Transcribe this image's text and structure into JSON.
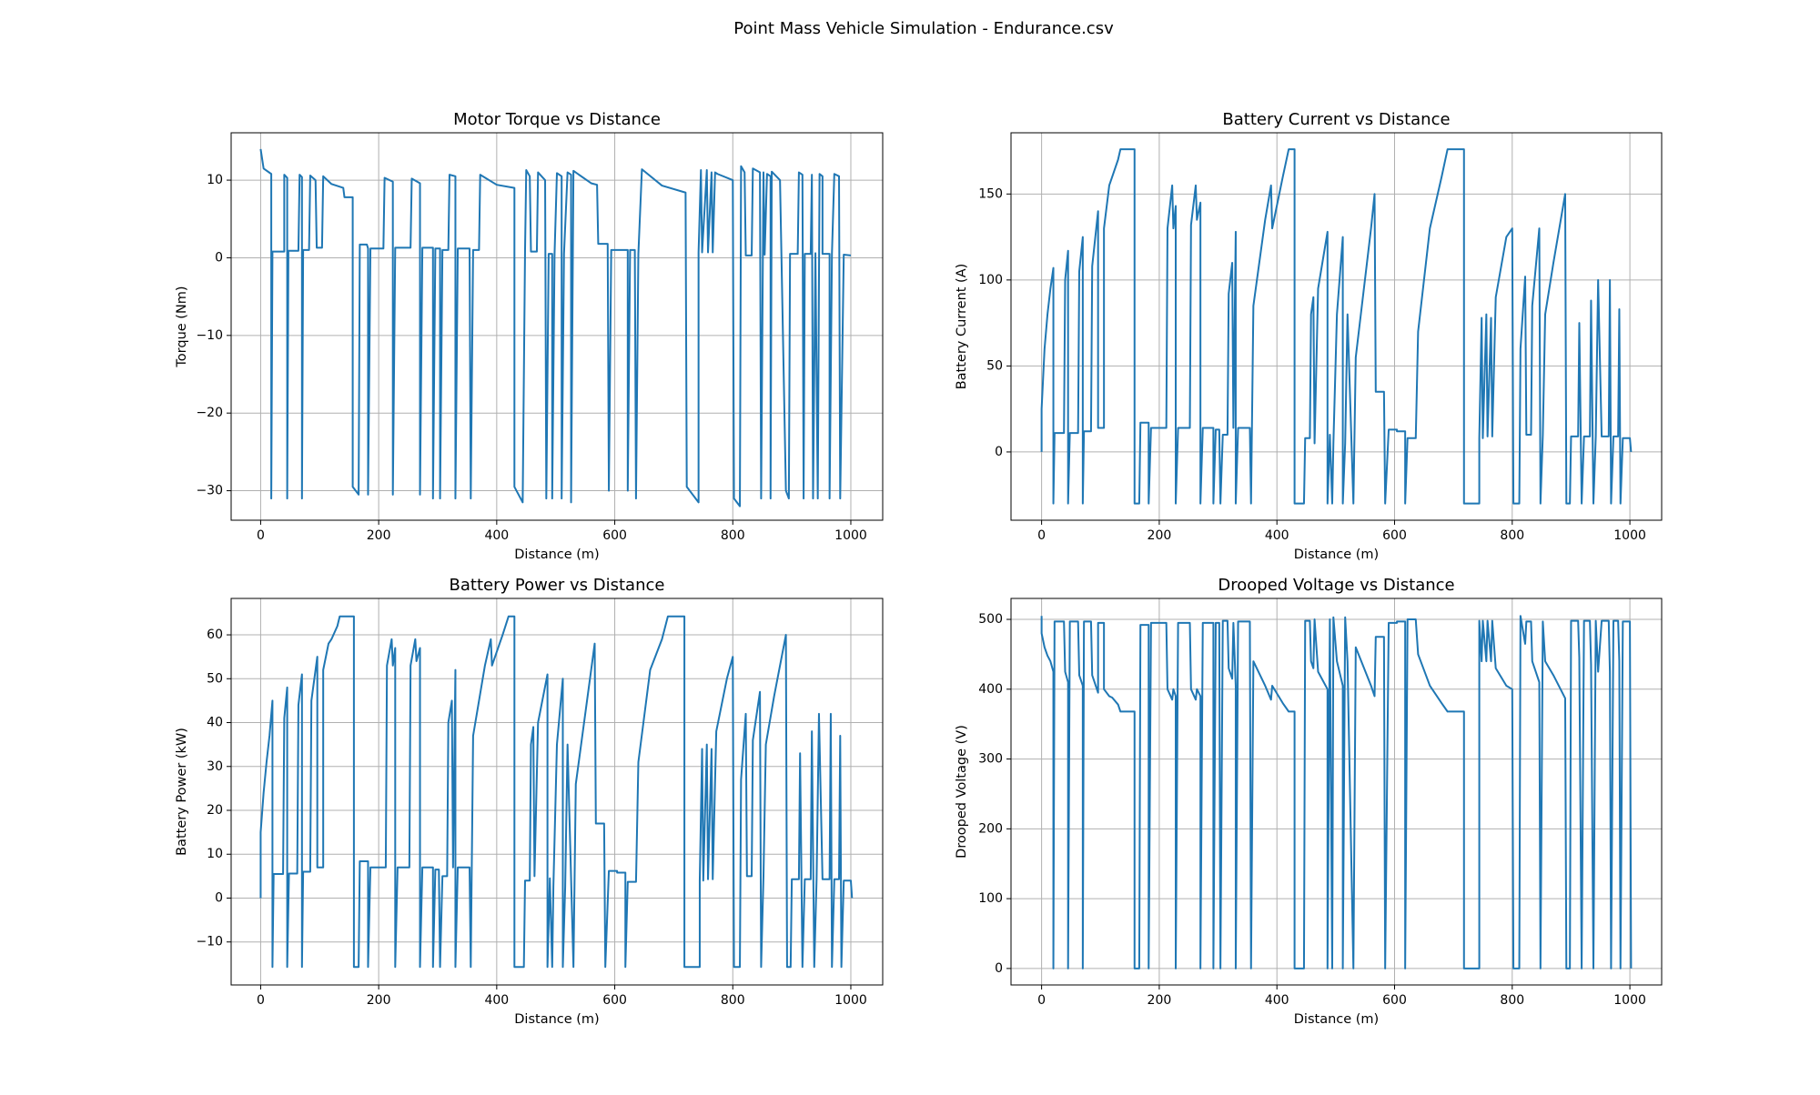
{
  "title": "Point Mass Vehicle Simulation - Endurance.csv",
  "chart_data": [
    {
      "type": "line",
      "title": "Motor Torque vs Distance",
      "xlabel": "Distance (m)",
      "ylabel": "Torque (Nm)",
      "color": "#1f77b4",
      "grid": true,
      "xlim": [
        -50,
        1054
      ],
      "ylim": [
        -33.8,
        16.1
      ],
      "xticks": [
        0,
        200,
        400,
        600,
        800,
        1000
      ],
      "yticks": [
        {
          "value": -30,
          "label": "−30"
        },
        {
          "value": -20,
          "label": "−20"
        },
        {
          "value": -10,
          "label": "−10"
        },
        0,
        10
      ],
      "x": [
        0,
        5,
        18,
        18,
        20,
        40,
        40,
        45,
        45,
        47,
        64,
        66,
        70,
        70,
        72,
        82,
        84,
        93,
        95,
        104,
        106,
        120,
        140,
        142,
        156,
        156,
        166,
        168,
        180,
        182,
        182,
        186,
        208,
        210,
        224,
        224,
        228,
        254,
        256,
        270,
        270,
        274,
        292,
        292,
        296,
        304,
        304,
        308,
        318,
        320,
        330,
        330,
        334,
        354,
        356,
        360,
        370,
        372,
        400,
        430,
        430,
        444,
        448,
        450,
        456,
        458,
        468,
        470,
        482,
        484,
        488,
        494,
        494,
        498,
        502,
        510,
        510,
        514,
        520,
        526,
        526,
        530,
        560,
        570,
        572,
        588,
        590,
        594,
        622,
        622,
        626,
        634,
        636,
        640,
        646,
        680,
        720,
        722,
        742,
        742,
        746,
        748,
        756,
        758,
        764,
        766,
        770,
        774,
        800,
        802,
        812,
        814,
        820,
        822,
        832,
        834,
        846,
        848,
        852,
        854,
        858,
        864,
        864,
        866,
        880,
        890,
        895,
        897,
        910,
        912,
        918,
        920,
        922,
        932,
        934,
        936,
        940,
        944,
        947,
        952,
        952,
        964,
        964,
        968,
        972,
        980,
        982,
        988,
        1000
      ],
      "values": [
        14,
        11.5,
        10.8,
        -31,
        0.8,
        0.8,
        10.7,
        10.3,
        -31,
        0.9,
        0.9,
        10.7,
        10.4,
        -31,
        1,
        1,
        10.6,
        10,
        1.3,
        1.3,
        10.5,
        9.5,
        9,
        7.8,
        7.8,
        -29.5,
        -30.5,
        1.7,
        1.7,
        1.2,
        -30.5,
        1.2,
        1.2,
        10.3,
        9.8,
        -30.5,
        1.3,
        1.3,
        10.2,
        9.6,
        -30.5,
        1.3,
        1.3,
        -31,
        1.2,
        1.2,
        -31,
        1,
        1,
        10.7,
        10.5,
        -31,
        1.2,
        1.2,
        -31,
        1,
        1,
        10.7,
        9.4,
        9,
        -29.5,
        -31.5,
        1,
        11.3,
        10.5,
        0.8,
        0.8,
        11,
        10,
        -31,
        0.5,
        0.5,
        -31,
        0.5,
        10.9,
        10.5,
        -31,
        0.5,
        11,
        10.7,
        -31.5,
        11.2,
        9.6,
        9.4,
        1.8,
        1.8,
        -30,
        1,
        1,
        -30,
        1,
        1,
        -31,
        0.5,
        11.4,
        9.3,
        8.4,
        -29.5,
        -31.5,
        0.7,
        11.3,
        0.7,
        11.3,
        0.7,
        11,
        0.7,
        11,
        10.8,
        10,
        -31,
        -32,
        11.8,
        11,
        0.3,
        0.3,
        11.5,
        11,
        -31,
        11,
        0.4,
        10.8,
        10.5,
        -31,
        11.1,
        10,
        -30,
        -31,
        0.5,
        0.5,
        11,
        10.7,
        -31,
        0.5,
        0.5,
        10.7,
        -31,
        0.6,
        -31,
        10.8,
        10.5,
        0.5,
        0.5,
        -31,
        0.5,
        10.8,
        10.5,
        -31,
        0.4,
        0.3
      ]
    },
    {
      "type": "line",
      "title": "Battery Current vs Distance",
      "xlabel": "Distance (m)",
      "ylabel": "Battery Current (A)",
      "color": "#1f77b4",
      "grid": true,
      "xlim": [
        -52,
        1054
      ],
      "ylim": [
        -39.7,
        185.6
      ],
      "xticks": [
        0,
        200,
        400,
        600,
        800,
        1000
      ],
      "yticks": [
        0,
        50,
        100,
        150
      ],
      "x": [
        0,
        0,
        5,
        10,
        15,
        20,
        20,
        22,
        38,
        40,
        45,
        45,
        48,
        62,
        64,
        70,
        70,
        72,
        84,
        86,
        96,
        96,
        106,
        106,
        115,
        120,
        130,
        134,
        158,
        158,
        166,
        168,
        182,
        182,
        186,
        212,
        214,
        222,
        224,
        228,
        228,
        232,
        252,
        254,
        262,
        264,
        270,
        270,
        274,
        292,
        292,
        296,
        302,
        304,
        308,
        316,
        318,
        324,
        326,
        330,
        330,
        334,
        354,
        356,
        360,
        380,
        390,
        392,
        410,
        420,
        430,
        430,
        446,
        448,
        456,
        458,
        462,
        464,
        470,
        486,
        486,
        490,
        494,
        496,
        502,
        512,
        512,
        516,
        520,
        530,
        534,
        560,
        566,
        568,
        582,
        584,
        590,
        604,
        604,
        618,
        618,
        622,
        636,
        640,
        660,
        680,
        690,
        718,
        718,
        744,
        744,
        748,
        750,
        756,
        758,
        764,
        766,
        772,
        790,
        800,
        802,
        812,
        814,
        822,
        824,
        832,
        834,
        846,
        848,
        852,
        856,
        870,
        890,
        892,
        898,
        900,
        912,
        914,
        918,
        922,
        932,
        934,
        938,
        942,
        946,
        952,
        964,
        966,
        968,
        972,
        980,
        982,
        984,
        988,
        1000,
        1002
      ],
      "values": [
        0,
        25,
        60,
        80,
        95,
        107,
        -30,
        11,
        11,
        100,
        117,
        -30,
        11,
        11,
        105,
        125,
        -30,
        12,
        12,
        108,
        140,
        14,
        14,
        130,
        155,
        160,
        170,
        176,
        176,
        -30,
        -30,
        17,
        17,
        -30,
        14,
        14,
        130,
        155,
        130,
        143,
        -30,
        14,
        14,
        132,
        155,
        135,
        145,
        -30,
        14,
        14,
        -30,
        13,
        13,
        -30,
        10,
        10,
        92,
        110,
        14,
        128,
        -30,
        14,
        14,
        -30,
        85,
        135,
        155,
        130,
        160,
        176,
        176,
        -30,
        -30,
        8,
        8,
        80,
        90,
        5,
        95,
        128,
        -30,
        10,
        -30,
        5,
        80,
        125,
        -30,
        5,
        80,
        -30,
        55,
        130,
        150,
        35,
        35,
        -30,
        13,
        13,
        12,
        12,
        -30,
        8,
        8,
        70,
        130,
        160,
        176,
        176,
        -30,
        -30,
        8,
        78,
        8,
        80,
        9,
        78,
        9,
        90,
        125,
        130,
        -30,
        -30,
        60,
        102,
        10,
        10,
        85,
        130,
        -30,
        10,
        80,
        110,
        150,
        -30,
        -30,
        9,
        9,
        75,
        -30,
        9,
        9,
        88,
        -30,
        9,
        100,
        9,
        9,
        100,
        -30,
        9,
        9,
        83,
        -30,
        8,
        8,
        0
      ]
    },
    {
      "type": "line",
      "title": "Battery Power vs Distance",
      "xlabel": "Distance (m)",
      "ylabel": "Battery Power (kW)",
      "color": "#1f77b4",
      "grid": true,
      "xlim": [
        -50,
        1054
      ],
      "ylim": [
        -19.8,
        68.3
      ],
      "xticks": [
        0,
        200,
        400,
        600,
        800,
        1000
      ],
      "yticks": [
        {
          "value": -10,
          "label": "−10"
        },
        0,
        10,
        20,
        30,
        40,
        50,
        60
      ],
      "x": [
        0,
        0,
        5,
        10,
        15,
        20,
        20,
        22,
        38,
        40,
        45,
        45,
        48,
        62,
        64,
        70,
        70,
        72,
        84,
        86,
        96,
        96,
        106,
        106,
        115,
        120,
        130,
        134,
        158,
        158,
        166,
        168,
        182,
        182,
        186,
        212,
        214,
        222,
        224,
        228,
        228,
        232,
        252,
        254,
        262,
        264,
        270,
        270,
        274,
        292,
        292,
        296,
        302,
        304,
        308,
        316,
        318,
        324,
        326,
        330,
        330,
        334,
        354,
        356,
        360,
        380,
        390,
        392,
        410,
        420,
        430,
        430,
        446,
        448,
        456,
        458,
        462,
        464,
        470,
        486,
        486,
        490,
        494,
        496,
        502,
        512,
        512,
        516,
        520,
        530,
        534,
        560,
        566,
        568,
        582,
        584,
        590,
        604,
        604,
        618,
        618,
        622,
        636,
        640,
        660,
        680,
        690,
        718,
        718,
        744,
        744,
        748,
        750,
        756,
        758,
        764,
        766,
        772,
        790,
        800,
        802,
        812,
        814,
        822,
        824,
        832,
        834,
        846,
        848,
        852,
        856,
        870,
        890,
        892,
        898,
        900,
        912,
        914,
        918,
        922,
        932,
        934,
        938,
        942,
        946,
        952,
        964,
        966,
        968,
        972,
        980,
        982,
        984,
        988,
        1000,
        1002
      ],
      "values": [
        0,
        15,
        24,
        31,
        37,
        45,
        -15.7,
        5.5,
        5.5,
        41,
        48,
        -15.7,
        5.6,
        5.6,
        44,
        51,
        -15.7,
        6,
        6,
        45,
        55,
        7,
        7,
        52,
        58,
        59,
        62,
        64.2,
        64.2,
        -15.7,
        -15.7,
        8.4,
        8.4,
        -15.7,
        7,
        7,
        53,
        59,
        53,
        57,
        -15.7,
        7,
        7,
        53,
        59,
        54,
        57,
        -15.7,
        7,
        7,
        -15.7,
        6.5,
        6.5,
        -15.7,
        5,
        5,
        40,
        45,
        7,
        52,
        -15.7,
        7,
        7,
        -15.7,
        37,
        53,
        59,
        53,
        60,
        64.2,
        64.2,
        -15.7,
        -15.7,
        4,
        4,
        35,
        39,
        5,
        40,
        51,
        -15.7,
        4.5,
        -15.7,
        2.5,
        35,
        50,
        -15.7,
        2.5,
        35,
        -15.7,
        26,
        52,
        58,
        17,
        17,
        -15.7,
        6.2,
        6.2,
        5.8,
        5.8,
        -15.7,
        3.7,
        3.7,
        31,
        52,
        59,
        64.2,
        64.2,
        -15.7,
        -15.7,
        4,
        34,
        4,
        35,
        4.3,
        34,
        4.3,
        38,
        50,
        55,
        -15.7,
        -15.7,
        27,
        42,
        5,
        5,
        36,
        47,
        -15.7,
        5,
        35,
        46,
        60,
        -15.7,
        -15.7,
        4.3,
        4.3,
        33,
        -15.7,
        4.3,
        4.3,
        38,
        -15.7,
        4.3,
        42,
        4.3,
        4.3,
        42,
        -15.7,
        4.3,
        4.3,
        37,
        -15.7,
        4,
        4,
        0
      ]
    },
    {
      "type": "line",
      "title": "Drooped Voltage vs Distance",
      "xlabel": "Distance (m)",
      "ylabel": "Drooped Voltage (V)",
      "color": "#1f77b4",
      "grid": true,
      "xlim": [
        -52,
        1054
      ],
      "ylim": [
        -23.6,
        530
      ],
      "xticks": [
        0,
        200,
        400,
        600,
        800,
        1000
      ],
      "yticks": [
        0,
        100,
        200,
        300,
        400,
        500
      ],
      "x": [
        0,
        0,
        5,
        10,
        15,
        20,
        20,
        22,
        38,
        40,
        45,
        45,
        48,
        62,
        64,
        70,
        70,
        72,
        84,
        86,
        96,
        96,
        106,
        106,
        115,
        120,
        130,
        134,
        158,
        158,
        166,
        168,
        182,
        182,
        186,
        212,
        214,
        222,
        224,
        228,
        228,
        232,
        252,
        254,
        262,
        264,
        270,
        270,
        274,
        292,
        292,
        296,
        302,
        304,
        308,
        316,
        318,
        324,
        326,
        330,
        330,
        334,
        354,
        356,
        360,
        380,
        390,
        392,
        410,
        420,
        430,
        430,
        446,
        448,
        456,
        458,
        462,
        464,
        470,
        486,
        486,
        490,
        494,
        496,
        502,
        512,
        512,
        516,
        520,
        530,
        534,
        560,
        566,
        568,
        582,
        584,
        590,
        604,
        604,
        618,
        618,
        622,
        636,
        640,
        660,
        680,
        690,
        718,
        718,
        744,
        744,
        748,
        750,
        756,
        758,
        764,
        766,
        772,
        790,
        800,
        802,
        812,
        814,
        822,
        824,
        832,
        834,
        846,
        848,
        852,
        856,
        870,
        890,
        892,
        898,
        900,
        912,
        914,
        918,
        922,
        932,
        934,
        938,
        942,
        946,
        952,
        964,
        966,
        968,
        972,
        980,
        982,
        984,
        988,
        1000,
        1002
      ],
      "values": [
        505,
        480,
        460,
        448,
        440,
        425,
        0,
        497,
        497,
        425,
        410,
        0,
        497,
        497,
        420,
        405,
        0,
        497,
        497,
        420,
        395,
        495,
        495,
        400,
        390,
        388,
        378,
        368,
        368,
        0,
        0,
        492,
        492,
        0,
        495,
        495,
        400,
        385,
        400,
        390,
        0,
        495,
        495,
        400,
        385,
        400,
        390,
        0,
        495,
        495,
        0,
        495,
        495,
        0,
        498,
        498,
        430,
        415,
        495,
        405,
        0,
        497,
        497,
        0,
        440,
        405,
        385,
        405,
        380,
        368,
        368,
        0,
        0,
        498,
        498,
        440,
        430,
        500,
        425,
        400,
        0,
        500,
        0,
        503,
        440,
        405,
        0,
        503,
        440,
        0,
        460,
        405,
        390,
        475,
        475,
        0,
        495,
        495,
        497,
        497,
        0,
        500,
        500,
        450,
        405,
        380,
        368,
        368,
        0,
        0,
        498,
        440,
        498,
        440,
        498,
        440,
        498,
        430,
        405,
        400,
        0,
        0,
        505,
        465,
        497,
        497,
        440,
        410,
        0,
        497,
        440,
        420,
        387,
        0,
        0,
        498,
        498,
        445,
        0,
        498,
        498,
        435,
        0,
        498,
        425,
        498,
        498,
        425,
        0,
        498,
        498,
        440,
        0,
        497,
        497,
        0
      ]
    }
  ]
}
